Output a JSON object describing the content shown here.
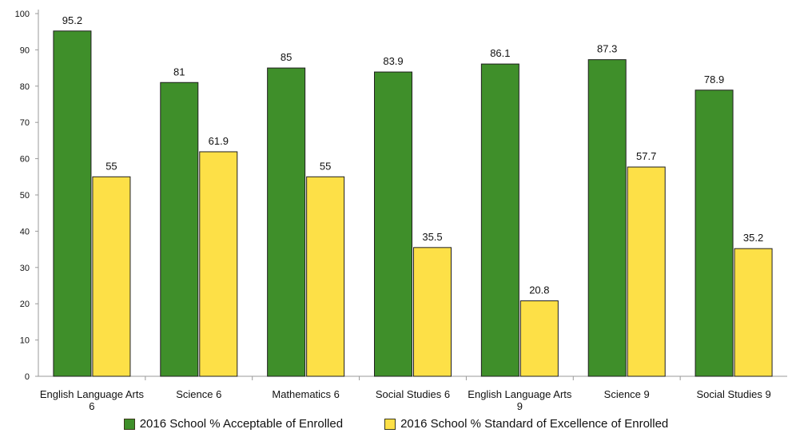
{
  "chart_data": {
    "type": "bar",
    "categories": [
      [
        "English Language Arts",
        "6"
      ],
      [
        "Science 6"
      ],
      [
        "Mathematics 6"
      ],
      [
        "Social Studies 6"
      ],
      [
        "English Language Arts",
        "9"
      ],
      [
        "Science 9"
      ],
      [
        "Social Studies 9"
      ]
    ],
    "series": [
      {
        "name": "2016 School % Acceptable of Enrolled",
        "color": "#3f8f2a",
        "values": [
          95.2,
          81,
          85,
          83.9,
          86.1,
          87.3,
          78.9
        ]
      },
      {
        "name": "2016 School % Standard of Excellence of Enrolled",
        "color": "#fde047",
        "values": [
          55,
          61.9,
          55,
          35.5,
          20.8,
          57.7,
          35.2
        ]
      }
    ],
    "ylim": [
      0,
      100
    ],
    "yticks": [
      0,
      10,
      20,
      30,
      40,
      50,
      60,
      70,
      80,
      90,
      100
    ],
    "grid": false,
    "legend_position": "bottom"
  }
}
